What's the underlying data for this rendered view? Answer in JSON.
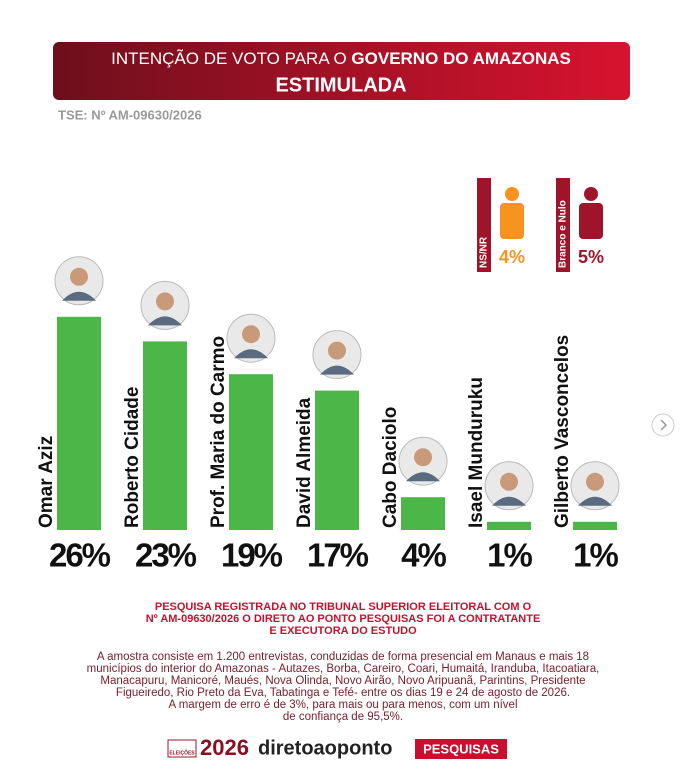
{
  "chart_data": {
    "type": "bar",
    "title_prefix": "INTENÇÃO DE VOTO PARA O",
    "title_bold": "GOVERNO DO AMAZONAS",
    "subtitle": "ESTIMULADA",
    "registration": "TSE: Nº AM-09630/2026",
    "categories": [
      "Omar Aziz",
      "Roberto Cidade",
      "Prof. Maria do Carmo",
      "David Almeida",
      "Cabo Daciolo",
      "Isael Munduruku",
      "Gilberto Vasconcelos"
    ],
    "values": [
      26,
      23,
      19,
      17,
      4,
      1,
      1
    ],
    "value_labels": [
      "26%",
      "23%",
      "19%",
      "17%",
      "4%",
      "1%",
      "1%"
    ],
    "color": "#4cb648",
    "ylim": [
      0,
      30
    ],
    "other_responses": [
      {
        "name": "NS/NR",
        "value": 4,
        "value_label": "4%",
        "color": "#f7931e"
      },
      {
        "name": "Branco e Nulo",
        "value": 5,
        "value_label": "5%",
        "color": "#a0142a"
      }
    ]
  },
  "footer": {
    "registration_lines": [
      "PESQUISA REGISTRADA NO TRIBUNAL SUPERIOR ELEITORAL COM O",
      "Nº AM-09630/2026 O DIRETO AO PONTO PESQUISAS FOI A CONTRATANTE",
      "E EXECUTORA DO ESTUDO"
    ],
    "methodology_lines": [
      "A amostra consiste em 1.200 entrevistas, conduzidas de forma presencial em Manaus e mais 18",
      "municípios do interior do Amazonas - Autazes, Borba, Careiro, Coari, Humaitá, Iranduba, Itacoatiara,",
      "Manacapuru, Manicoré, Maués, Nova Olinda,  Novo Airão, Novo Aripuanã, Parintins, Presidente",
      "Figueiredo, Rio Preto da Eva, Tabatinga e Tefé- entre os dias 19 e 24 de agosto de 2026.",
      "A margem de erro é de 3%, para mais ou para menos, com um nível",
      "de confiança de 95,5%."
    ],
    "logo": {
      "badge": "ELEIÇÕES",
      "year": "2026",
      "brand": "diretoaoponto",
      "tag": "PESQUISAS"
    }
  }
}
